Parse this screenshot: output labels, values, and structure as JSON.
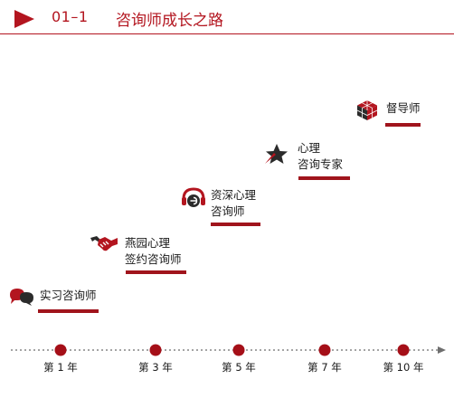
{
  "header": {
    "number": "01–1",
    "title": "咨询师成长之路"
  },
  "stages": [
    {
      "lines": [
        "实习咨询师"
      ],
      "icon": "speech-bubbles-icon"
    },
    {
      "lines": [
        "燕园心理",
        "签约咨询师"
      ],
      "icon": "handshake-icon"
    },
    {
      "lines": [
        "资深心理",
        "咨询师"
      ],
      "icon": "headset-icon"
    },
    {
      "lines": [
        "心理",
        "咨询专家"
      ],
      "icon": "star-icon"
    },
    {
      "lines": [
        "督导师"
      ],
      "icon": "cube-icon"
    }
  ],
  "timeline": {
    "ticks": [
      "第 1 年",
      "第 3 年",
      "第 5 年",
      "第 7 年",
      "第 10 年"
    ]
  },
  "colors": {
    "accent": "#b3151f",
    "bar": "#a0141c",
    "dot": "#a50f18",
    "icon_dark": "#2b2b2b"
  }
}
